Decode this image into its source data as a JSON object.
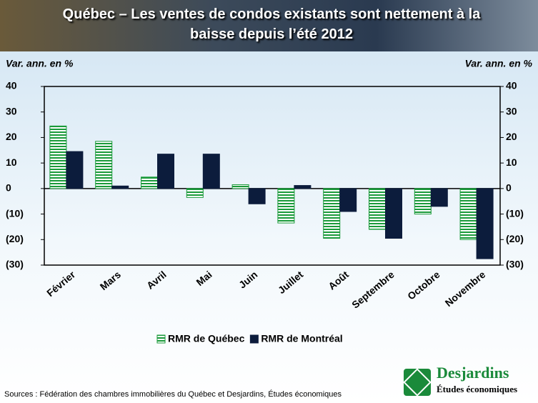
{
  "chart_data": {
    "type": "bar",
    "title": "Québec – Les ventes de condos existants sont nettement à la baisse depuis l’été 2012",
    "y_label": "Var. ann. en  %",
    "y2_label": "Var. ann. en  %",
    "categories": [
      "Février",
      "Mars",
      "Avril",
      "Mai",
      "Juin",
      "Juillet",
      "Août",
      "Septembre",
      "Octobre",
      "Novembre"
    ],
    "series": [
      {
        "name": "RMR de Québec",
        "color": "#1a9a3a",
        "values": [
          24.5,
          18.5,
          4.5,
          -3.5,
          1.5,
          -13.5,
          -19.5,
          -16,
          -10,
          -20
        ]
      },
      {
        "name": "RMR de Montréal",
        "color": "#0c1c3c",
        "values": [
          14.5,
          1,
          13.5,
          13.5,
          -6,
          1.2,
          -9,
          -19.5,
          -7,
          -27.5
        ]
      }
    ],
    "ylim": [
      -30,
      40
    ],
    "yticks": [
      {
        "value": -30,
        "label": "(30)"
      },
      {
        "value": -20,
        "label": "(20)"
      },
      {
        "value": -10,
        "label": "(10)"
      },
      0,
      10,
      20,
      30,
      40
    ],
    "y2lim": [
      -30,
      40
    ],
    "y2ticks": [
      {
        "value": -30,
        "label": "(30)"
      },
      {
        "value": -20,
        "label": "(20)"
      },
      {
        "value": -10,
        "label": "(10)"
      },
      0,
      10,
      20,
      30,
      40
    ],
    "legend": "bottom",
    "source": "Sources : Fédération des chambres immobilières du Québec et Desjardins, Études économiques"
  },
  "branding": {
    "name": "Desjardins",
    "subtitle": "Études économiques"
  }
}
